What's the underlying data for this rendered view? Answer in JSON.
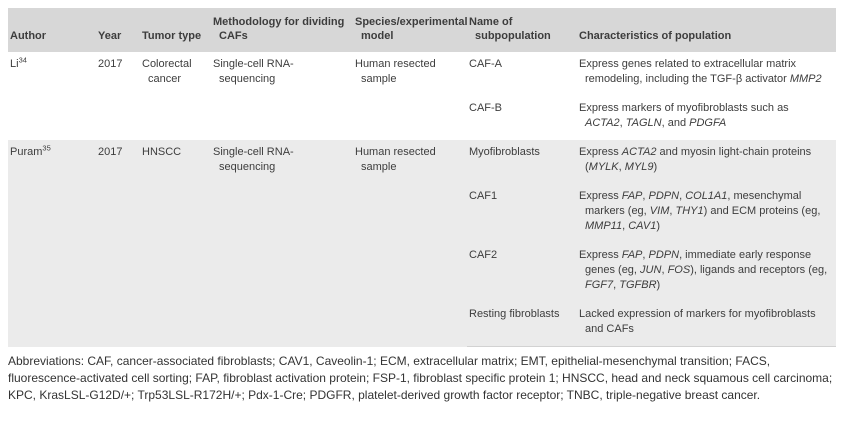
{
  "table": {
    "columns": [
      "Author",
      "Year",
      "Tumor type",
      "Methodology for dividing CAFs",
      "Species/experimental model",
      "Name of subpopulation",
      "Characteristics of population"
    ],
    "groups": [
      {
        "author": "Li",
        "reference": "34",
        "year": "2017",
        "tumor_type": "Colorectal cancer",
        "methodology": "Single-cell RNA-sequencing",
        "species": "Human resected sample",
        "subpopulations": [
          {
            "name": "CAF-A",
            "characteristics": "Express genes related to extracellular matrix remodeling, including the TGF-β activator *MMP2*"
          },
          {
            "name": "CAF-B",
            "characteristics": "Express markers of myofibroblasts such as *ACTA2*, *TAGLN*, and *PDGFA*"
          }
        ]
      },
      {
        "author": "Puram",
        "reference": "35",
        "year": "2017",
        "tumor_type": "HNSCC",
        "methodology": "Single-cell RNA-sequencing",
        "species": "Human resected sample",
        "subpopulations": [
          {
            "name": "Myofibroblasts",
            "characteristics": "Express *ACTA2* and myosin light-chain proteins (*MYLK*, *MYL9*)"
          },
          {
            "name": "CAF1",
            "characteristics": "Express *FAP*, *PDPN*, *COL1A1*, mesenchymal markers (eg, *VIM*, *THY1*) and ECM proteins (eg, *MMP11*, *CAV1*)"
          },
          {
            "name": "CAF2",
            "characteristics": "Express *FAP*, *PDPN*, immediate early response genes (eg, *JUN*, *FOS*), ligands and receptors (eg, *FGF7*, *TGFBR*)"
          },
          {
            "name": "Resting fibroblasts",
            "characteristics": "Lacked expression of markers for myofibroblasts and CAFs"
          }
        ]
      }
    ],
    "footnote": "Abbreviations: CAF, cancer-associated fibroblasts; CAV1, Caveolin-1; ECM, extracellular matrix; EMT, epithelial-mesenchymal transition; FACS, fluorescence-activated cell sorting; FAP, fibroblast activation protein; FSP-1, fibroblast specific protein 1; HNSCC, head and neck squamous cell carcinoma; KPC, KrasLSL-G12D/+; Trp53LSL-R172H/+; Pdx-1-Cre; PDGFR, platelet-derived growth factor receptor; TNBC, triple-negative breast cancer."
  },
  "colors": {
    "header_bg": "#d7d7d7",
    "group_stripe_bg": "#ebebeb",
    "body_text": "#3d3d3d",
    "footnote_text": "#333333"
  }
}
